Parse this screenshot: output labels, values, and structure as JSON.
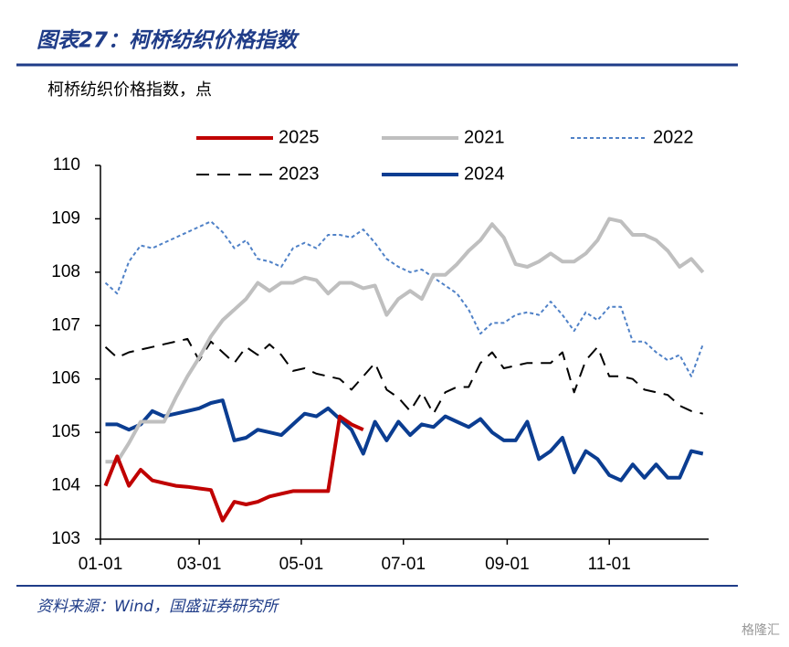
{
  "header": {
    "title": "图表27：柯桥纺织价格指数"
  },
  "chart_data": {
    "type": "line",
    "subtitle": "柯桥纺织价格指数，点",
    "x": [
      3,
      10,
      17,
      24,
      31,
      38,
      45,
      52,
      59,
      66,
      73,
      80,
      87,
      94,
      101,
      108,
      115,
      122,
      129,
      136,
      143,
      150,
      157,
      164,
      171,
      178,
      185,
      192,
      199,
      206,
      213,
      220,
      227,
      234,
      241,
      248,
      255,
      262,
      269,
      276,
      283,
      290,
      297,
      304,
      311,
      318,
      325,
      332,
      339,
      346,
      353,
      360
    ],
    "xlim": [
      0,
      365
    ],
    "xticks": [
      {
        "value": 0,
        "label": "01-01"
      },
      {
        "value": 59,
        "label": "03-01"
      },
      {
        "value": 120,
        "label": "05-01"
      },
      {
        "value": 181,
        "label": "07-01"
      },
      {
        "value": 243,
        "label": "09-01"
      },
      {
        "value": 304,
        "label": "11-01"
      }
    ],
    "ylim": [
      103,
      110
    ],
    "yticks": [
      103,
      104,
      105,
      106,
      107,
      108,
      109,
      110
    ],
    "legend": "top",
    "series": [
      {
        "name": "2025",
        "color": "#c00000",
        "linestyle": "solid",
        "values": [
          104.0,
          104.55,
          104.0,
          104.3,
          104.1,
          104.05,
          104.0,
          103.98,
          103.95,
          103.92,
          103.35,
          103.7,
          103.65,
          103.7,
          103.8,
          103.85,
          103.9,
          103.9,
          103.9,
          103.9,
          105.3,
          105.15,
          105.05,
          null,
          null,
          null,
          null,
          null,
          null,
          null,
          null,
          null,
          null,
          null,
          null,
          null,
          null,
          null,
          null,
          null,
          null,
          null,
          null,
          null,
          null,
          null,
          null,
          null,
          null,
          null,
          null,
          null
        ]
      },
      {
        "name": "2021",
        "color": "#bfbfbf",
        "linestyle": "solid",
        "values": [
          104.45,
          104.45,
          104.8,
          105.2,
          105.2,
          105.2,
          105.65,
          106.05,
          106.4,
          106.8,
          107.1,
          107.3,
          107.5,
          107.8,
          107.65,
          107.8,
          107.8,
          107.9,
          107.85,
          107.6,
          107.8,
          107.8,
          107.7,
          107.75,
          107.2,
          107.5,
          107.65,
          107.5,
          107.95,
          107.95,
          108.15,
          108.4,
          108.6,
          108.9,
          108.65,
          108.15,
          108.1,
          108.2,
          108.35,
          108.2,
          108.2,
          108.35,
          108.6,
          109.0,
          108.95,
          108.7,
          108.7,
          108.6,
          108.4,
          108.1,
          108.25,
          108.0
        ]
      },
      {
        "name": "2022",
        "color": "#4f81c7",
        "linestyle": "dotted",
        "values": [
          107.8,
          107.6,
          108.2,
          108.5,
          108.45,
          108.55,
          108.65,
          108.75,
          108.85,
          108.95,
          108.75,
          108.45,
          108.6,
          108.25,
          108.2,
          108.1,
          108.45,
          108.55,
          108.45,
          108.7,
          108.7,
          108.65,
          108.8,
          108.55,
          108.25,
          108.1,
          108.0,
          108.05,
          107.9,
          107.75,
          107.6,
          107.3,
          106.85,
          107.05,
          107.05,
          107.2,
          107.25,
          107.2,
          107.45,
          107.2,
          106.9,
          107.25,
          107.1,
          107.35,
          107.35,
          106.7,
          106.7,
          106.5,
          106.35,
          106.45,
          106.05,
          106.65
        ]
      },
      {
        "name": "2023",
        "color": "#000000",
        "linestyle": "dashed",
        "values": [
          106.6,
          106.4,
          106.5,
          106.55,
          106.6,
          106.65,
          106.7,
          106.75,
          106.35,
          106.7,
          106.5,
          106.3,
          106.6,
          106.45,
          106.65,
          106.45,
          106.15,
          106.2,
          106.1,
          106.05,
          106.0,
          105.8,
          106.05,
          106.3,
          105.8,
          105.65,
          105.4,
          105.75,
          105.35,
          105.75,
          105.85,
          105.85,
          106.3,
          106.5,
          106.2,
          106.25,
          106.3,
          106.3,
          106.3,
          106.5,
          105.75,
          106.35,
          106.6,
          106.05,
          106.05,
          106.0,
          105.8,
          105.75,
          105.7,
          105.5,
          105.4,
          105.35
        ]
      },
      {
        "name": "2024",
        "color": "#0b3d91",
        "linestyle": "solid",
        "values": [
          105.15,
          105.15,
          105.05,
          105.15,
          105.4,
          105.3,
          105.35,
          105.4,
          105.45,
          105.55,
          105.6,
          104.85,
          104.9,
          105.05,
          105.0,
          104.95,
          105.15,
          105.35,
          105.3,
          105.45,
          105.25,
          105.05,
          104.6,
          105.2,
          104.85,
          105.2,
          104.95,
          105.15,
          105.1,
          105.3,
          105.2,
          105.1,
          105.25,
          105.0,
          104.85,
          104.85,
          105.2,
          104.5,
          104.65,
          104.9,
          104.25,
          104.65,
          104.5,
          104.2,
          104.1,
          104.4,
          104.15,
          104.4,
          104.15,
          104.15,
          104.65,
          104.6
        ]
      }
    ]
  },
  "footer": {
    "source": "资料来源：Wind，国盛证券研究所",
    "watermark": "格隆汇"
  }
}
